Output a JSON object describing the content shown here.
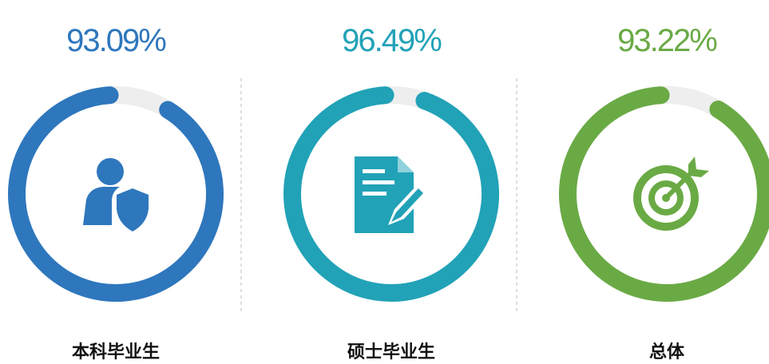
{
  "chart_data": [
    {
      "type": "donut",
      "categories": [
        "本科毕业生"
      ],
      "values": [
        93.09
      ],
      "value_labels": [
        "93.09%"
      ],
      "color": "#2e77bd",
      "ylim": [
        0,
        100
      ]
    },
    {
      "type": "donut",
      "categories": [
        "硕士毕业生"
      ],
      "values": [
        96.49
      ],
      "value_labels": [
        "96.49%"
      ],
      "color": "#21a2b7",
      "ylim": [
        0,
        100
      ]
    },
    {
      "type": "donut",
      "categories": [
        "总体"
      ],
      "values": [
        93.22
      ],
      "value_labels": [
        "93.22%"
      ],
      "color": "#6aaa45",
      "ylim": [
        0,
        100
      ]
    }
  ]
}
